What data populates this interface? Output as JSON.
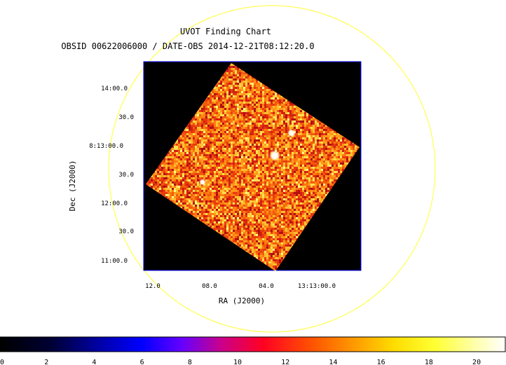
{
  "header": {
    "title": "UVOT Finding Chart",
    "subtitle": "OBSID 00622006000 / DATE-OBS 2014-12-21T08:12:20.0"
  },
  "chart_data": {
    "type": "heatmap",
    "xlabel": "RA (J2000)",
    "ylabel": "Dec (J2000)",
    "x_ticks": [
      "12.0",
      "08.0",
      "04.0",
      "13:13:00.0"
    ],
    "y_ticks": [
      "14:00.0",
      "30.0",
      "8:13:00.0",
      "30.0",
      "12:00.0",
      "30.0",
      "11:00.0"
    ],
    "colorbar": {
      "ticks": [
        0,
        2,
        4,
        6,
        8,
        10,
        12,
        14,
        16,
        18,
        20
      ],
      "range": [
        0,
        21.2
      ]
    },
    "colors": {
      "circle": "#ffff33",
      "frame": "#0000ff",
      "background": "#000000"
    }
  }
}
